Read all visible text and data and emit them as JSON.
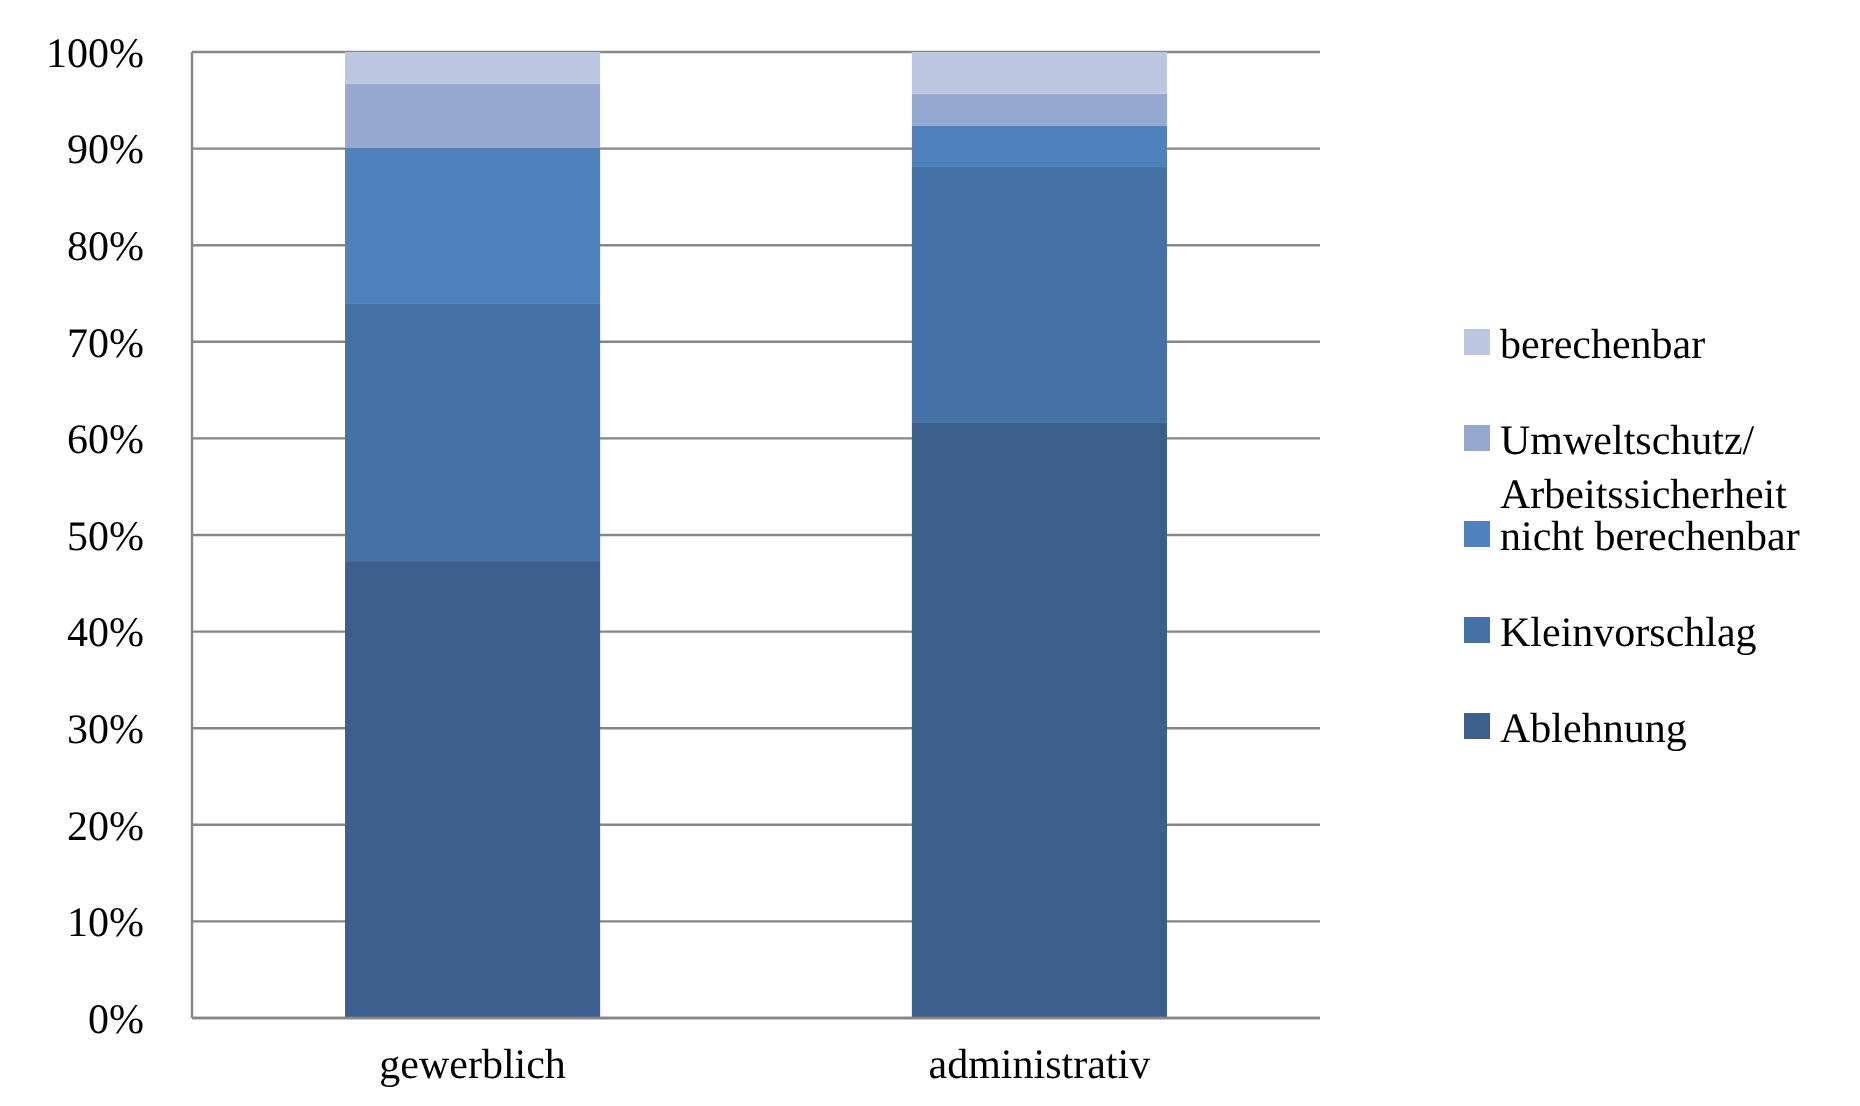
{
  "chart_data": {
    "type": "bar",
    "stacked": true,
    "categories": [
      "gewerblich",
      "administrativ"
    ],
    "series": [
      {
        "name": "Ablehnung",
        "color": "#3b5e8c",
        "values": [
          47.3,
          61.6
        ]
      },
      {
        "name": "Kleinvorschlag",
        "color": "#4472a6",
        "values": [
          26.7,
          26.5
        ]
      },
      {
        "name": "nicht berechenbar",
        "color": "#4f81bd",
        "values": [
          16.1,
          4.3
        ]
      },
      {
        "name": "Umweltschutz/Arbeitssicherheit",
        "color": "#95a9d0",
        "values": [
          6.6,
          3.3
        ]
      },
      {
        "name": "berechenbar",
        "color": "#bbc7e0",
        "values": [
          3.3,
          4.3
        ]
      }
    ],
    "ylim": [
      0,
      100
    ],
    "yticks": [
      {
        "value": 0,
        "label": "0%"
      },
      {
        "value": 10,
        "label": "10%"
      },
      {
        "value": 20,
        "label": "20%"
      },
      {
        "value": 30,
        "label": "30%"
      },
      {
        "value": 40,
        "label": "40%"
      },
      {
        "value": 50,
        "label": "50%"
      },
      {
        "value": 60,
        "label": "60%"
      },
      {
        "value": 70,
        "label": "70%"
      },
      {
        "value": 80,
        "label": "80%"
      },
      {
        "value": 90,
        "label": "90%"
      },
      {
        "value": 100,
        "label": "100%"
      }
    ],
    "grid": "y",
    "legend": "right"
  }
}
